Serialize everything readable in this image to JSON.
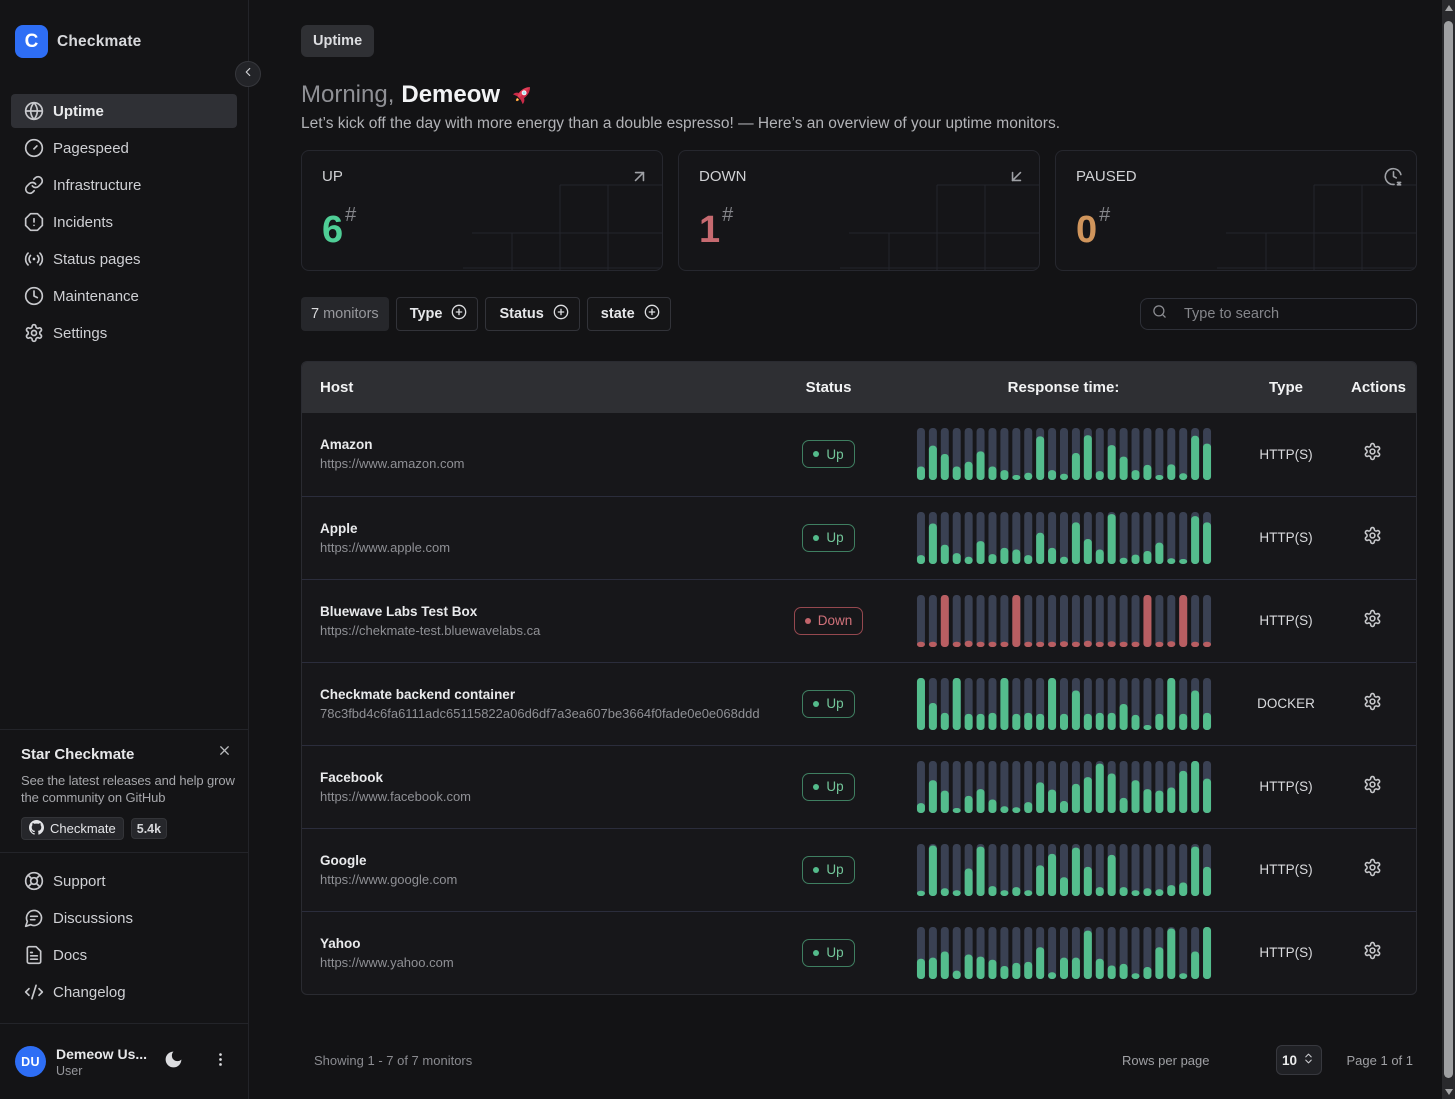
{
  "app": {
    "name": "Checkmate",
    "logo_letter": "C"
  },
  "colors": {
    "accent_blue": "#2e6ef5",
    "up_green": "#4fce96",
    "down_red": "#c66a70",
    "paused_amber": "#d0955c",
    "bar_green": "#54bd8d",
    "bar_red": "#b95e62",
    "bar_track": "#3a4153"
  },
  "sidebar": {
    "collapse_icon": "chevron-left",
    "nav": [
      {
        "label": "Uptime",
        "icon": "globe",
        "active": true
      },
      {
        "label": "Pagespeed",
        "icon": "gauge",
        "active": false
      },
      {
        "label": "Infrastructure",
        "icon": "link",
        "active": false
      },
      {
        "label": "Incidents",
        "icon": "alert-octagon",
        "active": false
      },
      {
        "label": "Status pages",
        "icon": "radio",
        "active": false
      },
      {
        "label": "Maintenance",
        "icon": "clock",
        "active": false
      },
      {
        "label": "Settings",
        "icon": "gear",
        "active": false
      }
    ],
    "star_card": {
      "title": "Star Checkmate",
      "body": "See the latest releases and help grow the community on GitHub",
      "github_button_label": "Checkmate",
      "star_count": "5.4k",
      "close_icon": "x"
    },
    "links": [
      {
        "label": "Support",
        "icon": "life-buoy"
      },
      {
        "label": "Discussions",
        "icon": "message-circle"
      },
      {
        "label": "Docs",
        "icon": "file-text"
      },
      {
        "label": "Changelog",
        "icon": "code"
      }
    ],
    "user": {
      "initials": "DU",
      "name": "Demeow Us...",
      "role": "User",
      "theme_icon": "moon",
      "menu_icon": "kebab"
    }
  },
  "header": {
    "breadcrumb": "Uptime",
    "greeting_prefix": "Morning,",
    "greeting_name": "Demeow",
    "greeting_icon": "rocket",
    "subtitle": "Let’s kick off the day with more energy than a double espresso! — Here’s an overview of your uptime monitors."
  },
  "stats": [
    {
      "label": "UP",
      "value": "6",
      "suffix": "#",
      "color": "#4fce96",
      "icon": "arrow-up-right"
    },
    {
      "label": "DOWN",
      "value": "1",
      "suffix": "#",
      "color": "#c66a70",
      "icon": "arrow-down-left"
    },
    {
      "label": "PAUSED",
      "value": "0",
      "suffix": "#",
      "color": "#d0955c",
      "icon": "clock-snooze"
    }
  ],
  "filters": {
    "count_value": "7",
    "count_suffix": "monitors",
    "buttons": [
      {
        "label": "Type",
        "icon": "plus-circle"
      },
      {
        "label": "Status",
        "icon": "plus-circle"
      },
      {
        "label": "state",
        "icon": "plus-circle"
      }
    ],
    "search_placeholder": "Type to search",
    "search_icon": "search"
  },
  "table": {
    "columns": [
      "Host",
      "Status",
      "Response time:",
      "Type",
      "Actions"
    ],
    "rows": [
      {
        "name": "Amazon",
        "url": "https://www.amazon.com",
        "status": "Up",
        "type": "HTTP(S)",
        "bar_color": "up",
        "bars": [
          0.26,
          0.66,
          0.5,
          0.26,
          0.35,
          0.55,
          0.26,
          0.19,
          0.09,
          0.14,
          0.84,
          0.19,
          0.12,
          0.52,
          0.86,
          0.17,
          0.67,
          0.45,
          0.19,
          0.29,
          0.08,
          0.3,
          0.13,
          0.85,
          0.7
        ]
      },
      {
        "name": "Apple",
        "url": "https://www.apple.com",
        "status": "Up",
        "type": "HTTP(S)",
        "bar_color": "up",
        "bars": [
          0.17,
          0.78,
          0.37,
          0.21,
          0.14,
          0.44,
          0.19,
          0.31,
          0.28,
          0.17,
          0.6,
          0.31,
          0.14,
          0.8,
          0.48,
          0.28,
          0.96,
          0.12,
          0.18,
          0.25,
          0.41,
          0.11,
          0.08,
          0.92,
          0.8
        ]
      },
      {
        "name": "Bluewave Labs Test Box",
        "url": "https://chekmate-test.bluewavelabs.ca",
        "status": "Down",
        "type": "HTTP(S)",
        "bar_color": "down",
        "bars": [
          0.1,
          0.1,
          1.0,
          0.1,
          0.12,
          0.1,
          0.1,
          0.1,
          1.0,
          0.1,
          0.1,
          0.1,
          0.11,
          0.1,
          0.12,
          0.1,
          0.11,
          0.1,
          0.1,
          1.0,
          0.1,
          0.11,
          1.0,
          0.1,
          0.1
        ]
      },
      {
        "name": "Checkmate backend container",
        "url": "78c3fbd4c6fa6111adc65115822a06d6df7a3ea607be3664f0fade0e0e068ddd",
        "status": "Up",
        "type": "DOCKER",
        "bar_color": "up",
        "bars": [
          1.0,
          0.52,
          0.33,
          1.0,
          0.31,
          0.31,
          0.33,
          1.0,
          0.31,
          0.33,
          0.31,
          1.0,
          0.31,
          0.76,
          0.31,
          0.33,
          0.33,
          0.5,
          0.29,
          0.07,
          0.31,
          1.0,
          0.31,
          0.76,
          0.33
        ]
      },
      {
        "name": "Facebook",
        "url": "https://www.facebook.com",
        "status": "Up",
        "type": "HTTP(S)",
        "bar_color": "up",
        "bars": [
          0.19,
          0.63,
          0.43,
          0.07,
          0.33,
          0.46,
          0.26,
          0.13,
          0.11,
          0.21,
          0.59,
          0.45,
          0.23,
          0.56,
          0.69,
          0.95,
          0.76,
          0.29,
          0.63,
          0.46,
          0.43,
          0.49,
          0.81,
          1.0,
          0.66
        ]
      },
      {
        "name": "Google",
        "url": "https://www.google.com",
        "status": "Up",
        "type": "HTTP(S)",
        "bar_color": "up",
        "bars": [
          0.1,
          0.97,
          0.15,
          0.11,
          0.53,
          0.95,
          0.19,
          0.11,
          0.17,
          0.11,
          0.59,
          0.81,
          0.36,
          0.93,
          0.56,
          0.17,
          0.79,
          0.17,
          0.11,
          0.15,
          0.13,
          0.21,
          0.26,
          0.95,
          0.56
        ]
      },
      {
        "name": "Yahoo",
        "url": "https://www.yahoo.com",
        "status": "Up",
        "type": "HTTP(S)",
        "bar_color": "up",
        "bars": [
          0.39,
          0.41,
          0.53,
          0.16,
          0.47,
          0.43,
          0.37,
          0.25,
          0.31,
          0.33,
          0.61,
          0.13,
          0.41,
          0.41,
          0.93,
          0.39,
          0.26,
          0.29,
          0.11,
          0.23,
          0.61,
          0.97,
          0.11,
          0.53,
          1.0
        ]
      }
    ],
    "actions_icon": "gear"
  },
  "chart_data": {
    "type": "bar",
    "title": "Response time sparklines per monitor (25 checks each, fraction of max bar height)",
    "series": [
      {
        "name": "Amazon",
        "values": [
          0.26,
          0.66,
          0.5,
          0.26,
          0.35,
          0.55,
          0.26,
          0.19,
          0.09,
          0.14,
          0.84,
          0.19,
          0.12,
          0.52,
          0.86,
          0.17,
          0.67,
          0.45,
          0.19,
          0.29,
          0.08,
          0.3,
          0.13,
          0.85,
          0.7
        ]
      },
      {
        "name": "Apple",
        "values": [
          0.17,
          0.78,
          0.37,
          0.21,
          0.14,
          0.44,
          0.19,
          0.31,
          0.28,
          0.17,
          0.6,
          0.31,
          0.14,
          0.8,
          0.48,
          0.28,
          0.96,
          0.12,
          0.18,
          0.25,
          0.41,
          0.11,
          0.08,
          0.92,
          0.8
        ]
      },
      {
        "name": "Bluewave Labs Test Box",
        "values": [
          0.1,
          0.1,
          1.0,
          0.1,
          0.12,
          0.1,
          0.1,
          0.1,
          1.0,
          0.1,
          0.1,
          0.1,
          0.11,
          0.1,
          0.12,
          0.1,
          0.11,
          0.1,
          0.1,
          1.0,
          0.1,
          0.11,
          1.0,
          0.1,
          0.1
        ]
      },
      {
        "name": "Checkmate backend container",
        "values": [
          1.0,
          0.52,
          0.33,
          1.0,
          0.31,
          0.31,
          0.33,
          1.0,
          0.31,
          0.33,
          0.31,
          1.0,
          0.31,
          0.76,
          0.31,
          0.33,
          0.33,
          0.5,
          0.29,
          0.07,
          0.31,
          1.0,
          0.31,
          0.76,
          0.33
        ]
      },
      {
        "name": "Facebook",
        "values": [
          0.19,
          0.63,
          0.43,
          0.07,
          0.33,
          0.46,
          0.26,
          0.13,
          0.11,
          0.21,
          0.59,
          0.45,
          0.23,
          0.56,
          0.69,
          0.95,
          0.76,
          0.29,
          0.63,
          0.46,
          0.43,
          0.49,
          0.81,
          1.0,
          0.66
        ]
      },
      {
        "name": "Google",
        "values": [
          0.1,
          0.97,
          0.15,
          0.11,
          0.53,
          0.95,
          0.19,
          0.11,
          0.17,
          0.11,
          0.59,
          0.81,
          0.36,
          0.93,
          0.56,
          0.17,
          0.79,
          0.17,
          0.11,
          0.15,
          0.13,
          0.21,
          0.26,
          0.95,
          0.56
        ]
      },
      {
        "name": "Yahoo",
        "values": [
          0.39,
          0.41,
          0.53,
          0.16,
          0.47,
          0.43,
          0.37,
          0.25,
          0.31,
          0.33,
          0.61,
          0.13,
          0.41,
          0.41,
          0.93,
          0.39,
          0.26,
          0.29,
          0.11,
          0.23,
          0.61,
          0.97,
          0.11,
          0.53,
          1.0
        ]
      }
    ]
  },
  "footer": {
    "showing": "Showing 1 - 7 of 7 monitors",
    "rows_per_page_label": "Rows per page",
    "rows_per_page_value": "10",
    "page_label": "Page 1 of 1"
  }
}
